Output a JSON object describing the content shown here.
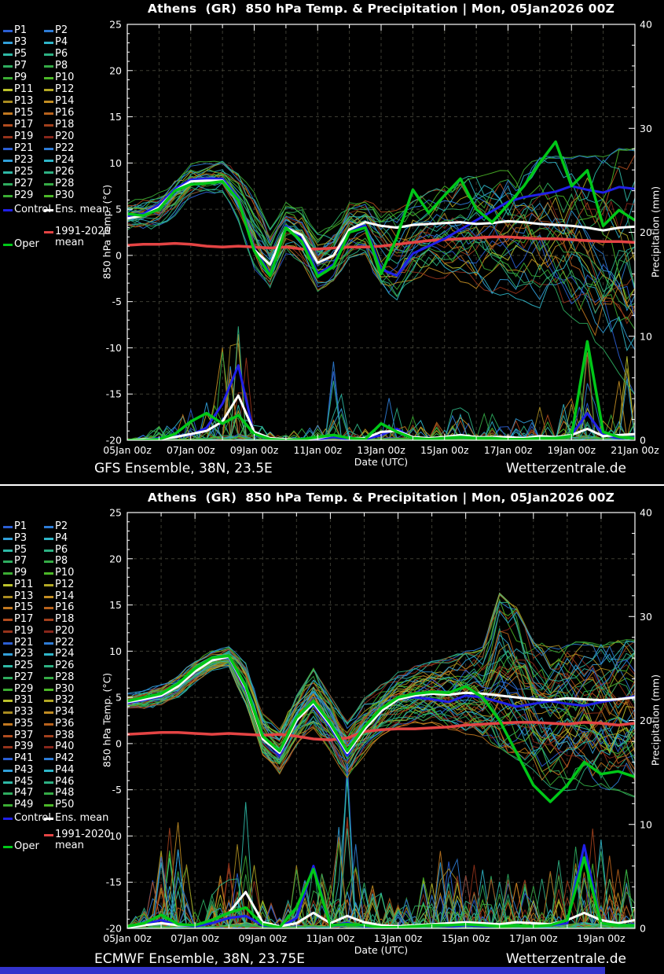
{
  "colors": {
    "background": "#000000",
    "text": "#ffffff",
    "frame": "#ffffff",
    "grid": "#3d3d33",
    "footer_bar": "#3333cc",
    "control": "#2020e8",
    "ens_mean": "#ffffff",
    "oper": "#00c818",
    "climate_mean": "#e44444",
    "member_cycle": [
      "#2b5fd4",
      "#2e7cd6",
      "#31a0da",
      "#2fb6c9",
      "#2eb9a6",
      "#2db183",
      "#2ead5f",
      "#35ab46",
      "#3bad33",
      "#4cb828",
      "#bcc22b",
      "#b3a824",
      "#a98b1f",
      "#c28d22",
      "#c2781f",
      "#b8621c",
      "#b14c1e",
      "#a2401c",
      "#95321a",
      "#87261a"
    ]
  },
  "panels": [
    {
      "title": "Athens  (GR)  850 hPa Temp. & Precipitation | Mon, 05Jan2026 00Z",
      "model_label": "GFS Ensemble, 38N, 23.5E",
      "site_label": "Wetterzentrale.de",
      "legend": {
        "control": "Control",
        "ens_mean": "Ens. mean",
        "climate": "1991-2020 mean",
        "oper": "Oper"
      },
      "member_labels": [
        "P1",
        "P2",
        "P3",
        "P4",
        "P5",
        "P6",
        "P7",
        "P8",
        "P9",
        "P10",
        "P11",
        "P12",
        "P13",
        "P14",
        "P15",
        "P16",
        "P17",
        "P18",
        "P19",
        "P20",
        "P21",
        "P22",
        "P23",
        "P24",
        "P25",
        "P26",
        "P27",
        "P28",
        "P29",
        "P30"
      ],
      "axes": {
        "y_left": {
          "label": "850 hPa Temp. (°C)",
          "min": -20,
          "max": 25,
          "ticks": [
            25,
            20,
            15,
            10,
            5,
            0,
            -5,
            -10,
            -15,
            -20
          ]
        },
        "y_right": {
          "label": "Precipitation (mm)",
          "min": 0,
          "max": 40,
          "ticks": [
            40,
            30,
            20,
            10,
            0
          ]
        },
        "x": {
          "label": "Date (UTC)",
          "days": 16,
          "tick_labels": [
            "05Jan 00z",
            "07Jan 00z",
            "09Jan 00z",
            "11Jan 00z",
            "13Jan 00z",
            "15Jan 00z",
            "17Jan 00z",
            "19Jan 00z",
            "21Jan 00z"
          ]
        }
      },
      "chart_data": {
        "type": "line",
        "x_step_days": 0.5,
        "x_start": "05Jan2026 00Z",
        "note": "30 ensemble member traces lie inside env_min/env_max temperature band; member precip spikes bounded by precip env_max",
        "temp": {
          "ens_mean": [
            4.0,
            4.3,
            5.2,
            7.0,
            8.0,
            8.1,
            8.1,
            6.0,
            0.6,
            -1.0,
            3.0,
            2.2,
            -0.8,
            0.0,
            2.8,
            3.6,
            3.2,
            3.0,
            3.3,
            3.4,
            3.5,
            3.6,
            3.4,
            3.5,
            3.7,
            3.6,
            3.4,
            3.3,
            3.2,
            3.0,
            2.7,
            3.0,
            3.1
          ],
          "control": [
            4.2,
            4.5,
            5.5,
            7.2,
            8.2,
            8.3,
            8.3,
            6.2,
            0.8,
            -2.0,
            3.2,
            2.0,
            -2.0,
            -1.0,
            2.8,
            3.2,
            -1.5,
            -2.2,
            0.2,
            1.0,
            1.8,
            2.8,
            3.8,
            4.8,
            5.8,
            6.3,
            6.6,
            6.9,
            7.5,
            7.1,
            6.8,
            7.4,
            7.2
          ],
          "oper": [
            4.5,
            4.3,
            5.0,
            7.0,
            7.7,
            7.8,
            8.0,
            6.0,
            0.5,
            -2.2,
            3.0,
            1.5,
            -2.3,
            -1.2,
            2.5,
            3.0,
            -2.0,
            2.0,
            7.1,
            4.6,
            6.5,
            8.3,
            5.0,
            3.6,
            5.5,
            7.5,
            10.0,
            12.3,
            7.5,
            9.2,
            3.2,
            4.9,
            3.8
          ],
          "climate_mean": [
            1.1,
            1.2,
            1.2,
            1.3,
            1.2,
            1.0,
            0.9,
            1.0,
            0.9,
            0.8,
            0.9,
            0.7,
            0.7,
            0.8,
            0.9,
            0.9,
            1.0,
            1.2,
            1.4,
            1.6,
            1.7,
            1.8,
            1.9,
            2.0,
            2.0,
            1.9,
            1.8,
            1.8,
            1.7,
            1.6,
            1.5,
            1.5,
            1.4
          ],
          "env_min": [
            3.0,
            3.0,
            3.2,
            4.5,
            6.5,
            6.8,
            7.0,
            4.0,
            -1.0,
            -3.2,
            0.5,
            -0.5,
            -3.5,
            -2.5,
            0.0,
            0.5,
            -4.0,
            -4.5,
            -2.5,
            -2.0,
            -2.0,
            -2.5,
            -3.0,
            -3.5,
            -4.0,
            -4.5,
            -5.0,
            -5.5,
            -6.0,
            -7.5,
            -9.5,
            -12.0,
            -14.0
          ],
          "env_max": [
            5.5,
            6.0,
            6.5,
            8.0,
            9.8,
            10.0,
            10.2,
            9.0,
            6.5,
            2.5,
            5.5,
            5.0,
            2.0,
            3.0,
            5.5,
            5.8,
            4.5,
            4.5,
            5.5,
            6.5,
            7.2,
            7.8,
            8.2,
            8.6,
            9.0,
            9.4,
            10.0,
            10.0,
            10.0,
            10.0,
            10.0,
            10.5,
            10.5
          ]
        },
        "precip": {
          "ens_mean": [
            0,
            0.1,
            0.1,
            0.3,
            0.6,
            0.9,
            1.8,
            4.3,
            0.8,
            0.2,
            0.1,
            0.1,
            0.2,
            0.5,
            0.2,
            0.2,
            0.8,
            0.9,
            0.3,
            0.2,
            0.3,
            0.5,
            0.3,
            0.3,
            0.3,
            0.2,
            0.4,
            0.3,
            0.5,
            1.1,
            0.4,
            0.5,
            0.6
          ],
          "control": [
            0,
            0,
            0.2,
            0.4,
            0.5,
            1.2,
            3.5,
            7.2,
            0.5,
            0.1,
            0,
            0.1,
            0.1,
            0.3,
            0.1,
            0.1,
            0.5,
            1.1,
            0.2,
            0.1,
            0.2,
            0.4,
            0.2,
            0.2,
            0.2,
            0.1,
            0.3,
            0.2,
            0.5,
            2.6,
            0.5,
            0.2,
            0.3
          ],
          "oper": [
            0,
            0,
            0.1,
            0.6,
            1.8,
            2.6,
            1.6,
            2.4,
            0.6,
            0.1,
            0,
            0.1,
            0.3,
            0.5,
            0.2,
            0.1,
            1.6,
            0.8,
            0.2,
            0.1,
            0.2,
            0.3,
            0.2,
            0.2,
            0.1,
            0.1,
            0.2,
            0.2,
            0.4,
            9.5,
            0.8,
            0.3,
            0.2
          ],
          "env_max": [
            0.3,
            0.5,
            1.5,
            2.0,
            3.0,
            4.5,
            10.0,
            13.4,
            3.0,
            1.0,
            0.5,
            1.5,
            2.0,
            8.0,
            1.5,
            2.0,
            4.5,
            6.0,
            2.5,
            1.5,
            2.0,
            4.0,
            2.5,
            3.0,
            2.5,
            2.0,
            3.5,
            2.5,
            6.0,
            10.0,
            4.0,
            8.0,
            11.0
          ]
        }
      }
    },
    {
      "title": "Athens  (GR)  850 hPa Temp. & Precipitation | Mon, 05Jan2026 00Z",
      "model_label": "ECMWF Ensemble, 38N, 23.75E",
      "site_label": "Wetterzentrale.de",
      "legend": {
        "control": "Control",
        "ens_mean": "Ens. mean",
        "climate": "1991-2020 mean",
        "oper": "Oper"
      },
      "member_labels": [
        "P1",
        "P2",
        "P3",
        "P4",
        "P5",
        "P6",
        "P7",
        "P8",
        "P9",
        "P10",
        "P11",
        "P12",
        "P13",
        "P14",
        "P15",
        "P16",
        "P17",
        "P18",
        "P19",
        "P20",
        "P21",
        "P22",
        "P23",
        "P24",
        "P25",
        "P26",
        "P27",
        "P28",
        "P29",
        "P30",
        "P31",
        "P32",
        "P33",
        "P34",
        "P35",
        "P36",
        "P37",
        "P38",
        "P39",
        "P40",
        "P41",
        "P42",
        "P43",
        "P44",
        "P45",
        "P46",
        "P47",
        "P48",
        "P49",
        "P50"
      ],
      "axes": {
        "y_left": {
          "label": "850 hPa Temp. (°C)",
          "min": -20,
          "max": 25,
          "ticks": [
            25,
            20,
            15,
            10,
            5,
            0,
            -5,
            -10,
            -15,
            -20
          ]
        },
        "y_right": {
          "label": "Precipitation (mm)",
          "min": 0,
          "max": 40,
          "ticks": [
            40,
            30,
            20,
            10,
            0
          ]
        },
        "x": {
          "label": "Date (UTC)",
          "days": 15,
          "tick_labels": [
            "05Jan 00z",
            "07Jan 00z",
            "09Jan 00z",
            "11Jan 00z",
            "13Jan 00z",
            "15Jan 00z",
            "17Jan 00z",
            "19Jan 00z"
          ]
        }
      },
      "chart_data": {
        "type": "line",
        "x_step_days": 0.5,
        "x_start": "05Jan2026 00Z",
        "note": "50 ensemble member traces lie inside env_min/env_max temperature band; member precip spikes bounded by precip env_max",
        "temp": {
          "ens_mean": [
            4.5,
            4.8,
            5.2,
            6.2,
            7.8,
            9.0,
            9.4,
            6.0,
            0.5,
            -1.0,
            2.5,
            4.4,
            2.0,
            -1.0,
            1.5,
            3.5,
            4.8,
            5.2,
            5.4,
            5.3,
            5.5,
            5.4,
            5.2,
            5.0,
            4.8,
            4.7,
            4.9,
            4.8,
            4.7,
            4.8,
            5.0
          ],
          "control": [
            4.4,
            4.7,
            5.1,
            6.3,
            7.9,
            9.1,
            9.3,
            5.8,
            0.8,
            -1.3,
            2.8,
            4.2,
            1.8,
            -1.3,
            1.8,
            3.8,
            5.0,
            5.0,
            4.8,
            4.5,
            5.2,
            5.0,
            4.5,
            4.0,
            4.3,
            4.6,
            4.3,
            4.1,
            4.5,
            4.8,
            5.1
          ],
          "oper": [
            4.6,
            5.0,
            5.4,
            6.5,
            8.1,
            9.3,
            9.5,
            6.2,
            0.8,
            -0.8,
            2.8,
            4.6,
            2.2,
            -0.8,
            1.8,
            3.8,
            5.0,
            5.4,
            5.6,
            5.5,
            6.2,
            5.0,
            2.5,
            -1.0,
            -4.5,
            -6.3,
            -4.5,
            -2.0,
            -3.3,
            -3.0,
            -3.6
          ],
          "climate_mean": [
            1.0,
            1.1,
            1.2,
            1.2,
            1.1,
            1.0,
            1.1,
            1.0,
            0.9,
            1.0,
            0.8,
            0.5,
            0.4,
            0.6,
            1.3,
            1.5,
            1.6,
            1.6,
            1.7,
            1.8,
            2.0,
            2.1,
            2.2,
            2.3,
            2.3,
            2.2,
            2.1,
            2.3,
            2.2,
            2.0,
            2.2
          ],
          "env_min": [
            3.8,
            4.0,
            4.3,
            5.2,
            6.8,
            8.0,
            8.5,
            4.5,
            -1.0,
            -3.0,
            0.0,
            2.0,
            -0.5,
            -3.5,
            -1.0,
            1.0,
            2.0,
            2.5,
            2.5,
            2.0,
            1.5,
            1.0,
            0.0,
            -1.0,
            -2.5,
            -4.0,
            -4.5,
            -4.0,
            -4.0,
            -4.5,
            -5.0
          ],
          "env_max": [
            5.2,
            5.6,
            6.2,
            7.2,
            8.8,
            9.8,
            10.3,
            8.5,
            3.0,
            1.5,
            5.0,
            7.8,
            5.0,
            2.0,
            4.5,
            6.0,
            7.5,
            8.0,
            8.5,
            9.0,
            9.5,
            10.0,
            15.5,
            14.0,
            10.5,
            10.0,
            10.0,
            10.5,
            10.0,
            10.5,
            10.5
          ]
        },
        "precip": {
          "ens_mean": [
            0.1,
            0.3,
            0.5,
            0.3,
            0.3,
            0.8,
            1.5,
            3.5,
            0.6,
            0.2,
            0.5,
            1.5,
            0.5,
            1.2,
            0.6,
            0.3,
            0.2,
            0.3,
            0.4,
            0.5,
            0.6,
            0.5,
            0.4,
            0.6,
            0.5,
            0.4,
            0.8,
            1.5,
            0.8,
            0.5,
            0.8
          ],
          "control": [
            0.1,
            0.4,
            0.8,
            0.3,
            0.2,
            0.5,
            1.0,
            1.2,
            0.3,
            0.1,
            1.0,
            6.0,
            0.3,
            0.5,
            0.2,
            0.1,
            0.1,
            0.2,
            0.3,
            0.2,
            0.3,
            0.2,
            0.2,
            0.3,
            0.2,
            0.3,
            0.5,
            8.0,
            0.5,
            0.3,
            0.4
          ],
          "oper": [
            0.2,
            0.5,
            1.3,
            0.4,
            0.3,
            0.8,
            1.5,
            2.0,
            0.4,
            0.1,
            2.0,
            5.7,
            0.3,
            0.4,
            0.3,
            0.1,
            0.1,
            0.2,
            0.3,
            0.3,
            0.4,
            0.3,
            0.2,
            0.3,
            0.2,
            0.3,
            0.8,
            6.8,
            0.5,
            0.3,
            0.3
          ],
          "env_max": [
            0.5,
            2.0,
            9.0,
            10.5,
            2.0,
            4.0,
            8.0,
            12.5,
            3.5,
            1.5,
            6.5,
            6.5,
            5.0,
            18.0,
            6.5,
            4.0,
            2.5,
            3.5,
            6.5,
            10.5,
            7.0,
            6.0,
            5.0,
            6.5,
            5.0,
            6.0,
            8.0,
            12.0,
            9.0,
            7.0,
            4.5
          ]
        }
      }
    }
  ]
}
